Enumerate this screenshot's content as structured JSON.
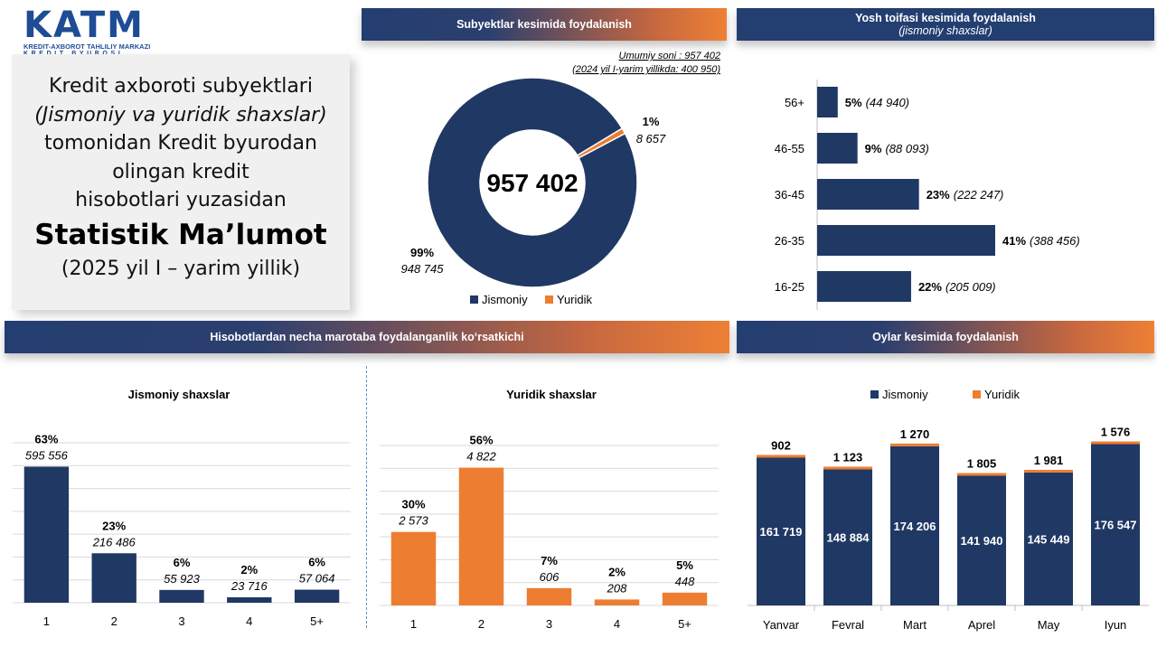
{
  "logo": {
    "main": "KATM",
    "sub1": "KREDIT-AXBOROT TAHLILIY MARKAZI",
    "sub2": "KREDIT BYUROSI"
  },
  "title_card": {
    "line1": "Kredit axboroti subyektlari",
    "line2": "(Jismoniy va yuridik shaxslar)",
    "line3": "tomonidan Kredit byurodan",
    "line4": "olingan kredit",
    "line5": "hisobotlari yuzasidan",
    "big": "Statistik Ma’lumot",
    "period": "(2025 yil I – yarim yillik)"
  },
  "headers": {
    "subjects": "Subyektlar kesimida foydalanish",
    "age": "Yosh toifasi kesimida foydalanish",
    "age_sub": "(jismoniy shaxslar)",
    "frequency": "Hisobotlardan necha marotaba foydalanganlik ko‘rsatkichi",
    "months": "Oylar kesimida foydalanish"
  },
  "colors": {
    "navy": "#203864",
    "orange": "#ed7d31"
  },
  "chart_data": [
    {
      "type": "pie",
      "id": "donut",
      "total_label": "Umumiy soni : 957 402",
      "prev_label": "(2024 yil I-yarim yillikda: 400 950)",
      "center_value": "957 402",
      "slices": [
        {
          "name": "Jismoniy",
          "value": 948745,
          "pct_label": "99%",
          "value_label": "948 745",
          "color": "#203864"
        },
        {
          "name": "Yuridik",
          "value": 8657,
          "pct_label": "1%",
          "value_label": "8 657",
          "color": "#ed7d31"
        }
      ],
      "legend": [
        "Jismoniy",
        "Yuridik"
      ]
    },
    {
      "type": "bar",
      "id": "age",
      "orientation": "horizontal",
      "categories": [
        "56+",
        "46-55",
        "36-45",
        "26-35",
        "16-25"
      ],
      "values": [
        44940,
        88093,
        222247,
        388456,
        205009
      ],
      "pct_labels": [
        "5%",
        "9%",
        "23%",
        "41%",
        "22%"
      ],
      "value_labels": [
        "(44 940)",
        "(88 093)",
        "(222 247)",
        "(388 456)",
        "(205 009)"
      ],
      "color": "#203864"
    },
    {
      "type": "bar",
      "id": "jismoniy_freq",
      "title": "Jismoniy shaxslar",
      "categories": [
        "1",
        "2",
        "3",
        "4",
        "5+"
      ],
      "values": [
        595556,
        216486,
        55923,
        23716,
        57064
      ],
      "pct_labels": [
        "63%",
        "23%",
        "6%",
        "2%",
        "6%"
      ],
      "value_labels": [
        "595 556",
        "216 486",
        "55 923",
        "23 716",
        "57 064"
      ],
      "ylim": [
        0,
        700000
      ],
      "grid": true,
      "color": "#203864"
    },
    {
      "type": "bar",
      "id": "yuridik_freq",
      "title": "Yuridik shaxslar",
      "categories": [
        "1",
        "2",
        "3",
        "4",
        "5+"
      ],
      "values": [
        2573,
        4822,
        606,
        208,
        448
      ],
      "pct_labels": [
        "30%",
        "56%",
        "7%",
        "2%",
        "5%"
      ],
      "value_labels": [
        "2 573",
        "4 822",
        "606",
        "208",
        "448"
      ],
      "ylim": [
        0,
        5600
      ],
      "grid": true,
      "color": "#ed7d31"
    },
    {
      "type": "bar",
      "id": "months",
      "stacked": true,
      "categories": [
        "Yanvar",
        "Fevral",
        "Mart",
        "Aprel",
        "May",
        "Iyun"
      ],
      "legend": [
        "Jismoniy",
        "Yuridik"
      ],
      "series": [
        {
          "name": "Jismoniy",
          "values": [
            161719,
            148884,
            174206,
            141940,
            145449,
            176547
          ],
          "labels": [
            "161 719",
            "148 884",
            "174 206",
            "141 940",
            "145 449",
            "176 547"
          ],
          "color": "#203864"
        },
        {
          "name": "Yuridik",
          "values": [
            902,
            1123,
            1270,
            1805,
            1981,
            1576
          ],
          "labels": [
            "902",
            "1 123",
            "1 270",
            "1 805",
            "1 981",
            "1 576"
          ],
          "color": "#ed7d31"
        }
      ],
      "ylim": [
        0,
        180000
      ]
    }
  ]
}
